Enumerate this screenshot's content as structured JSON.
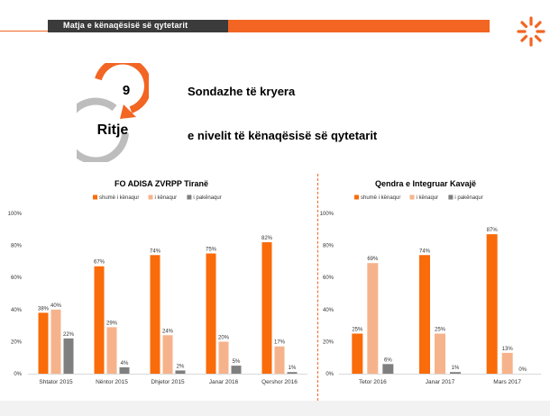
{
  "header": {
    "title": "Matja e kënaqësisë së qytetarit"
  },
  "badge": {
    "number": "9",
    "label": "Ritje"
  },
  "text": {
    "line1": "Sondazhe të kryera",
    "line2": "e nivelit të kënaqësisë së qytetarit"
  },
  "colors": {
    "accent": "#f26522",
    "series": [
      "#fa6b09",
      "#f6b38b",
      "#7f7f7f"
    ]
  },
  "icons": {
    "logo": "orange-radial-logo-icon",
    "badge": "circular-arrows-icon"
  },
  "chart_data": [
    {
      "type": "bar",
      "title": "FO ADISA ZVRPP Tiranë",
      "categories": [
        "Shtator 2015",
        "Nëntor 2015",
        "Dhjetor 2015",
        "Janar 2016",
        "Qershor 2016"
      ],
      "series": [
        {
          "name": "shumë i kënaqur",
          "values": [
            38,
            67,
            74,
            75,
            82
          ]
        },
        {
          "name": "i kënaqur",
          "values": [
            40,
            29,
            24,
            20,
            17
          ]
        },
        {
          "name": "i pakënaqur",
          "values": [
            22,
            4,
            2,
            5,
            1
          ]
        }
      ],
      "yticks": [
        "0%",
        "20%",
        "40%",
        "60%",
        "80%",
        "100%"
      ],
      "ylim": [
        0,
        100
      ],
      "legend": "top",
      "grid": false
    },
    {
      "type": "bar",
      "title": "Qendra e Integruar Kavajë",
      "categories": [
        "Tetor 2016",
        "Janar 2017",
        "Mars 2017"
      ],
      "series": [
        {
          "name": "shumë i kënaqur",
          "values": [
            25,
            74,
            87
          ]
        },
        {
          "name": "i kënaqur",
          "values": [
            69,
            25,
            13
          ]
        },
        {
          "name": "i pakënaqur",
          "values": [
            6,
            1,
            0
          ]
        }
      ],
      "yticks": [
        "0%",
        "20%",
        "40%",
        "60%",
        "80%",
        "100%"
      ],
      "ylim": [
        0,
        100
      ],
      "legend": "top",
      "grid": false
    }
  ]
}
